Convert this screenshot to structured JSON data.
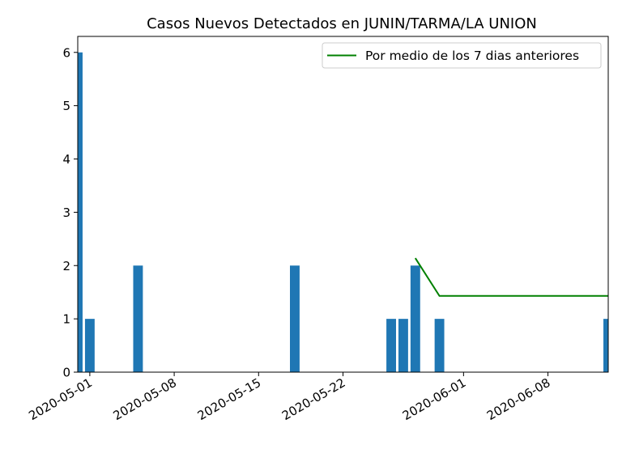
{
  "chart_data": {
    "type": "bar",
    "title": "Casos Nuevos Detectados en JUNIN/TARMA/LA UNION",
    "xlabel": "",
    "ylabel": "",
    "x_type": "date",
    "xlim": [
      "2020-04-30",
      "2020-06-13"
    ],
    "ylim": [
      0,
      6.3
    ],
    "y_ticks": [
      0,
      1,
      2,
      3,
      4,
      5,
      6
    ],
    "x_ticks": [
      "2020-05-01",
      "2020-05-08",
      "2020-05-15",
      "2020-05-22",
      "2020-06-01",
      "2020-06-08"
    ],
    "bars": {
      "color": "#1f77b4",
      "dates": [
        "2020-04-30",
        "2020-05-01",
        "2020-05-05",
        "2020-05-18",
        "2020-05-26",
        "2020-05-27",
        "2020-05-28",
        "2020-05-30",
        "2020-06-13"
      ],
      "values": [
        6,
        1,
        2,
        2,
        1,
        1,
        2,
        1,
        1
      ]
    },
    "series": [
      {
        "name": "Por medio de los 7 dias anteriores",
        "type": "line",
        "color": "#008000",
        "x": [
          "2020-05-28",
          "2020-05-30",
          "2020-06-13"
        ],
        "values": [
          2.14,
          1.43,
          1.43
        ]
      }
    ],
    "legend": {
      "placement": "top-right"
    },
    "grid": false
  }
}
